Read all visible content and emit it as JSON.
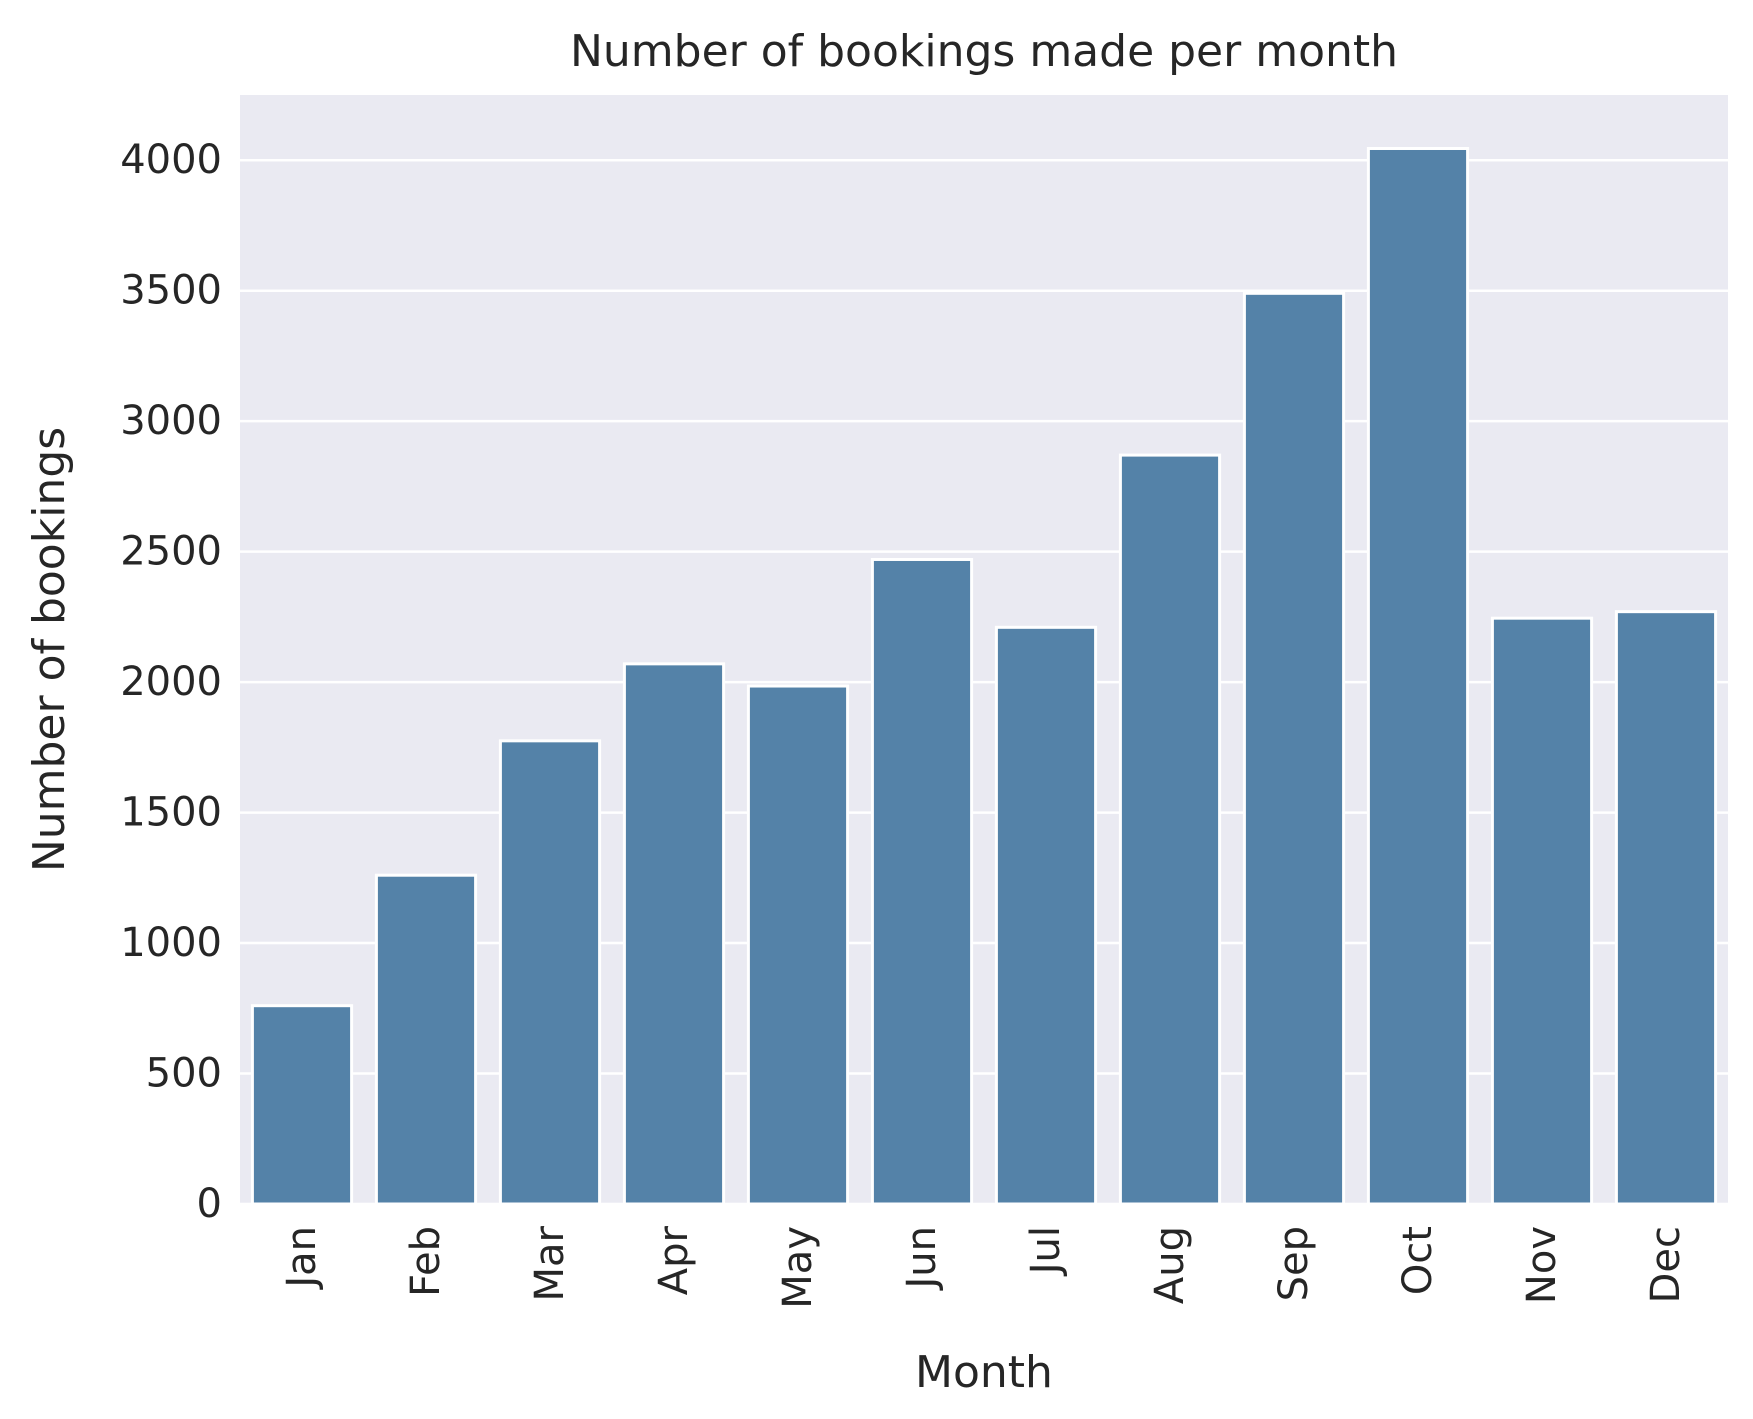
{
  "chart_data": {
    "type": "bar",
    "title": "Number of bookings made per month",
    "xlabel": "Month",
    "ylabel": "Number of bookings",
    "categories": [
      "Jan",
      "Feb",
      "Mar",
      "Apr",
      "May",
      "Jun",
      "Jul",
      "Aug",
      "Sep",
      "Oct",
      "Nov",
      "Dec"
    ],
    "values": [
      760,
      1260,
      1775,
      2070,
      1985,
      2470,
      2210,
      2870,
      3490,
      4045,
      2245,
      2270
    ],
    "ylim": [
      0,
      4250
    ],
    "yticks": [
      0,
      500,
      1000,
      1500,
      2000,
      2500,
      3000,
      3500,
      4000
    ],
    "ytick_labels": [
      "0",
      "500",
      "1000",
      "1500",
      "2000",
      "2500",
      "3000",
      "3500",
      "4000"
    ],
    "grid": true,
    "colors": {
      "bar": "#5482a8",
      "plot_background": "#eaeaf2",
      "grid": "#ffffff"
    }
  }
}
